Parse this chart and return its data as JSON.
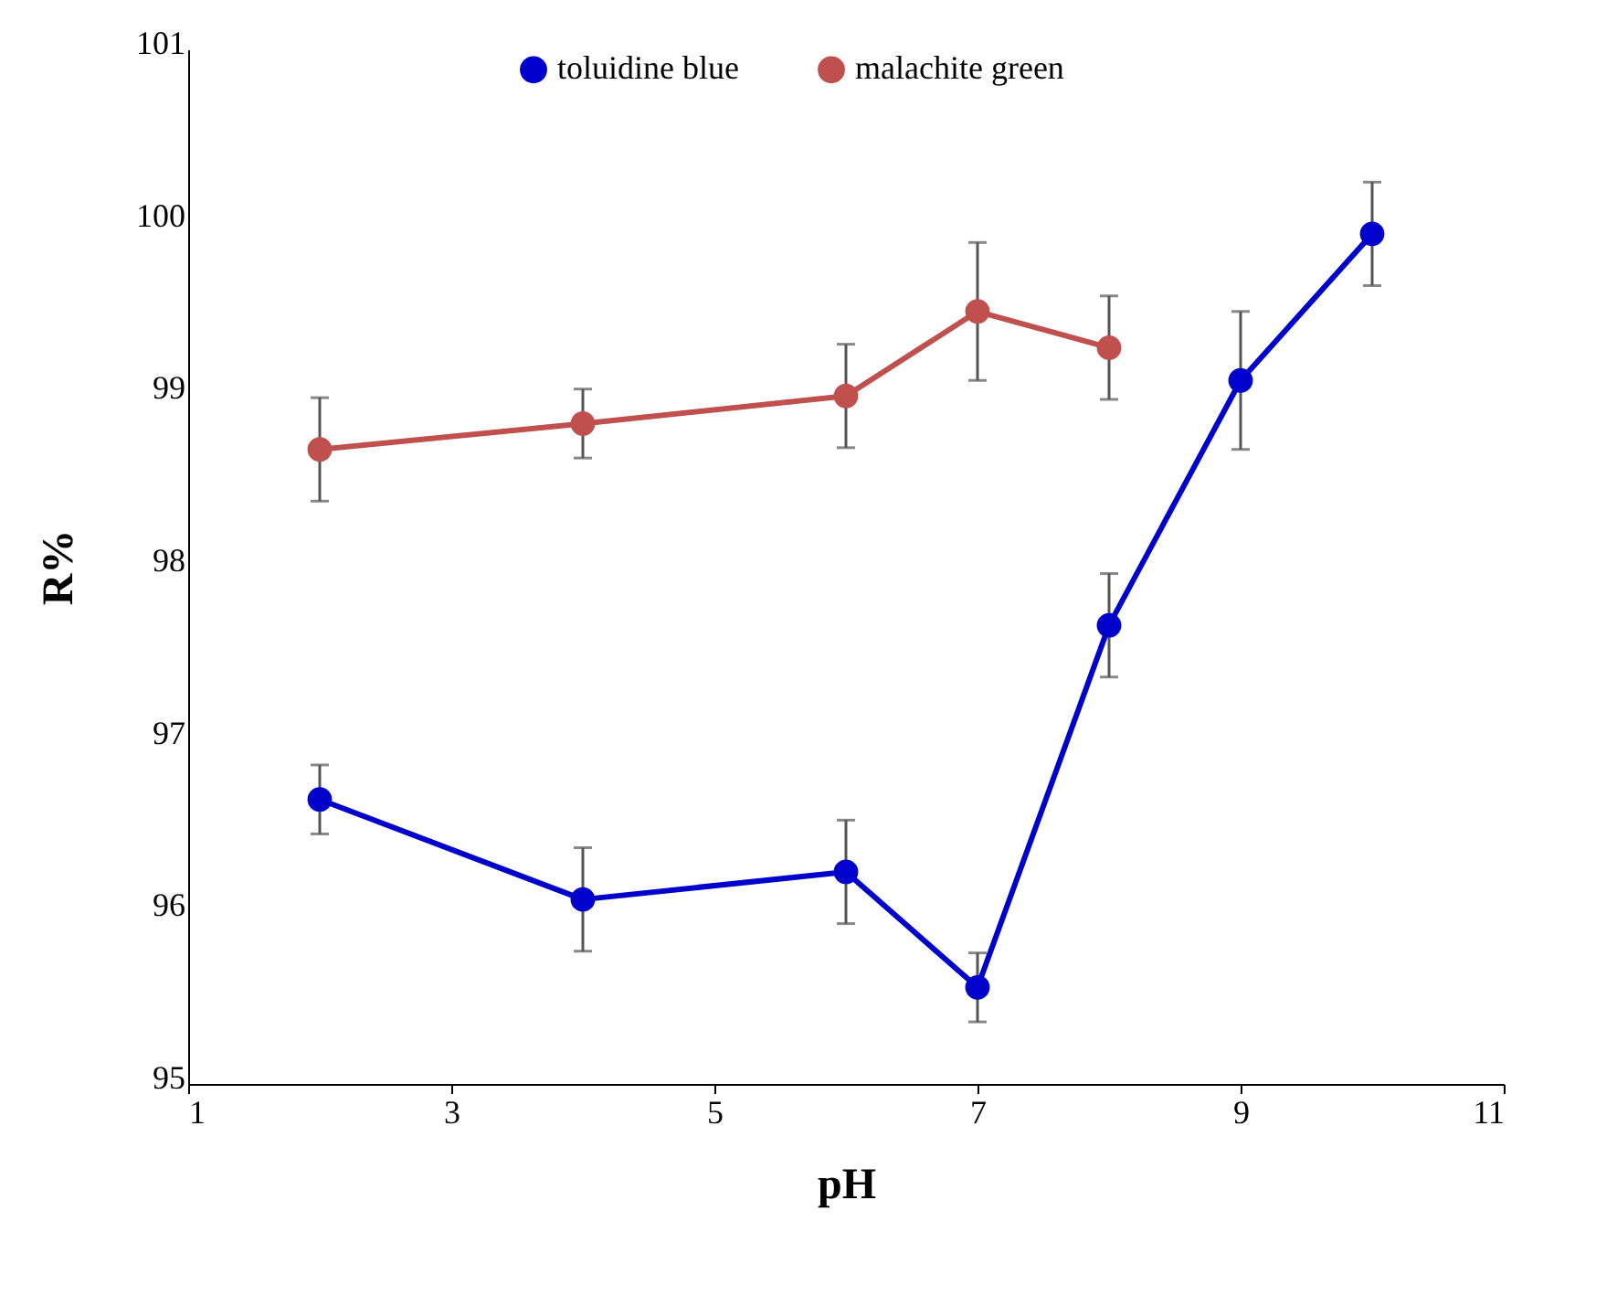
{
  "chart_data": {
    "type": "line",
    "xlabel": "pH",
    "ylabel": "R%",
    "xlim": [
      1,
      11
    ],
    "xticks": [
      1,
      3,
      5,
      7,
      9,
      11
    ],
    "ylim": [
      95,
      101
    ],
    "yticks": [
      95,
      96,
      97,
      98,
      99,
      100,
      101
    ],
    "grid": false,
    "legend": "top",
    "marker": "circle",
    "line_style": "solid",
    "x": [
      2,
      4,
      6,
      7,
      8,
      9,
      10
    ],
    "series": [
      {
        "name": "toluidine blue",
        "color": "#0000cc",
        "values": [
          96.65,
          96.07,
          96.23,
          95.56,
          97.66,
          99.08,
          99.93
        ],
        "errors": [
          0.2,
          0.3,
          0.3,
          0.2,
          0.3,
          0.4,
          0.3
        ]
      },
      {
        "name": "malachite green",
        "color": "#c0504d",
        "x": [
          2,
          4,
          6,
          7,
          8
        ],
        "values": [
          98.68,
          98.83,
          98.99,
          99.48,
          99.27
        ],
        "errors": [
          0.3,
          0.2,
          0.3,
          0.4,
          0.3
        ]
      }
    ]
  }
}
